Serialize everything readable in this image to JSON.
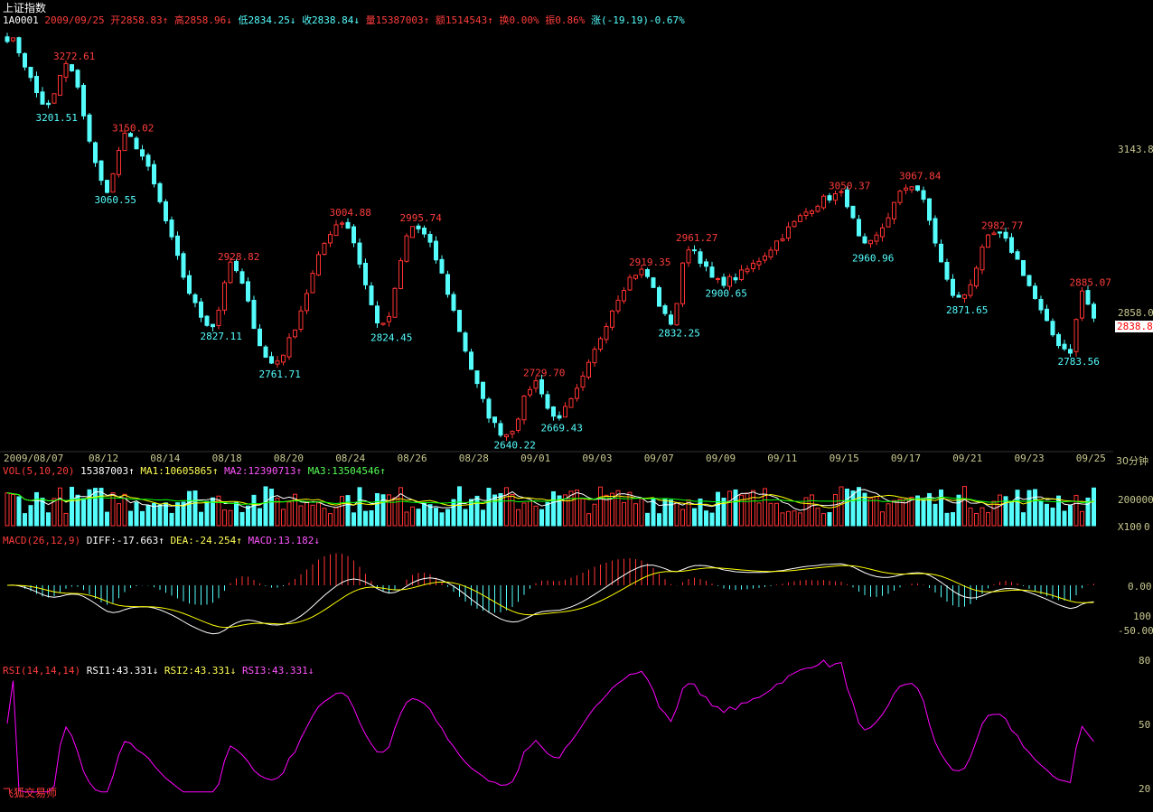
{
  "title": "上证指数",
  "header": {
    "code": "1A0001",
    "date": "2009/09/25",
    "open": "开2858.83↑",
    "high": "高2858.96↓",
    "low": "低2834.25↓",
    "close": "收2838.84↓",
    "volume": "量15387003↑",
    "amount": "额1514543↑",
    "turnover": "换0.00%",
    "amplitude": "振0.86%",
    "change": "涨(-19.19)-0.67%"
  },
  "price_axis": {
    "top": "3143.8",
    "mid": "2858.0",
    "last": "2838.8"
  },
  "period_label": "30分钟",
  "volume_panel": {
    "label": "VOL(5,10,20)",
    "value": "15387003↑",
    "ma1": "MA1:10605865↑",
    "ma2": "MA2:12390713↑",
    "ma3": "MA3:13504546↑",
    "axis_top": "200000",
    "axis_unit": "X100",
    "axis_zero": "0"
  },
  "macd_panel": {
    "label": "MACD(26,12,9)",
    "diff": "DIFF:-17.663↑",
    "dea": "DEA:-24.254↑",
    "macd": "MACD:13.182↓",
    "axis": [
      "0.00",
      "100",
      "-50.00"
    ]
  },
  "rsi_panel": {
    "label": "RSI(14,14,14)",
    "rsi1": "RSI1:43.331↓",
    "rsi2": "RSI2:43.331↓",
    "rsi3": "RSI3:43.331↓",
    "axis": [
      "80",
      "50",
      "20"
    ]
  },
  "watermark": "飞狐交易师",
  "colors": {
    "up": "#ff3232",
    "down": "#54fcfc",
    "ma1": "#ffffff",
    "ma2": "#ffff00",
    "ma3": "#00ff00",
    "rsi": "#ff00ff",
    "axis": "#c8c8c8"
  },
  "chart_data": {
    "type": "candlestick",
    "x_axis_dates": [
      "2009/08/07",
      "08/12",
      "08/14",
      "08/18",
      "08/20",
      "08/24",
      "08/26",
      "08/28",
      "09/01",
      "09/03",
      "09/07",
      "09/09",
      "09/11",
      "09/15",
      "09/17",
      "09/21",
      "09/23",
      "09/25"
    ],
    "price_range": [
      2640.22,
      3272.61
    ],
    "labeled_highs": [
      {
        "index": 10,
        "value": "3272.61"
      },
      {
        "index": 20,
        "value": "3150.02"
      },
      {
        "index": 38,
        "value": "2928.82"
      },
      {
        "index": 57,
        "value": "3004.88"
      },
      {
        "index": 69,
        "value": "2995.74"
      },
      {
        "index": 90,
        "value": "2729.70"
      },
      {
        "index": 108,
        "value": "2919.35"
      },
      {
        "index": 116,
        "value": "2961.27"
      },
      {
        "index": 142,
        "value": "3050.37"
      },
      {
        "index": 154,
        "value": "3067.84"
      },
      {
        "index": 168,
        "value": "2982.77"
      },
      {
        "index": 183,
        "value": "2885.07"
      }
    ],
    "labeled_lows": [
      {
        "index": 7,
        "value": "3201.51"
      },
      {
        "index": 17,
        "value": "3060.55"
      },
      {
        "index": 35,
        "value": "2827.11"
      },
      {
        "index": 45,
        "value": "2761.71"
      },
      {
        "index": 64,
        "value": "2824.45"
      },
      {
        "index": 85,
        "value": "2640.22"
      },
      {
        "index": 93,
        "value": "2669.43"
      },
      {
        "index": 113,
        "value": "2832.25"
      },
      {
        "index": 121,
        "value": "2900.65"
      },
      {
        "index": 146,
        "value": "2960.96"
      },
      {
        "index": 162,
        "value": "2871.65"
      },
      {
        "index": 181,
        "value": "2783.56"
      }
    ],
    "last_close": 2838.84
  }
}
